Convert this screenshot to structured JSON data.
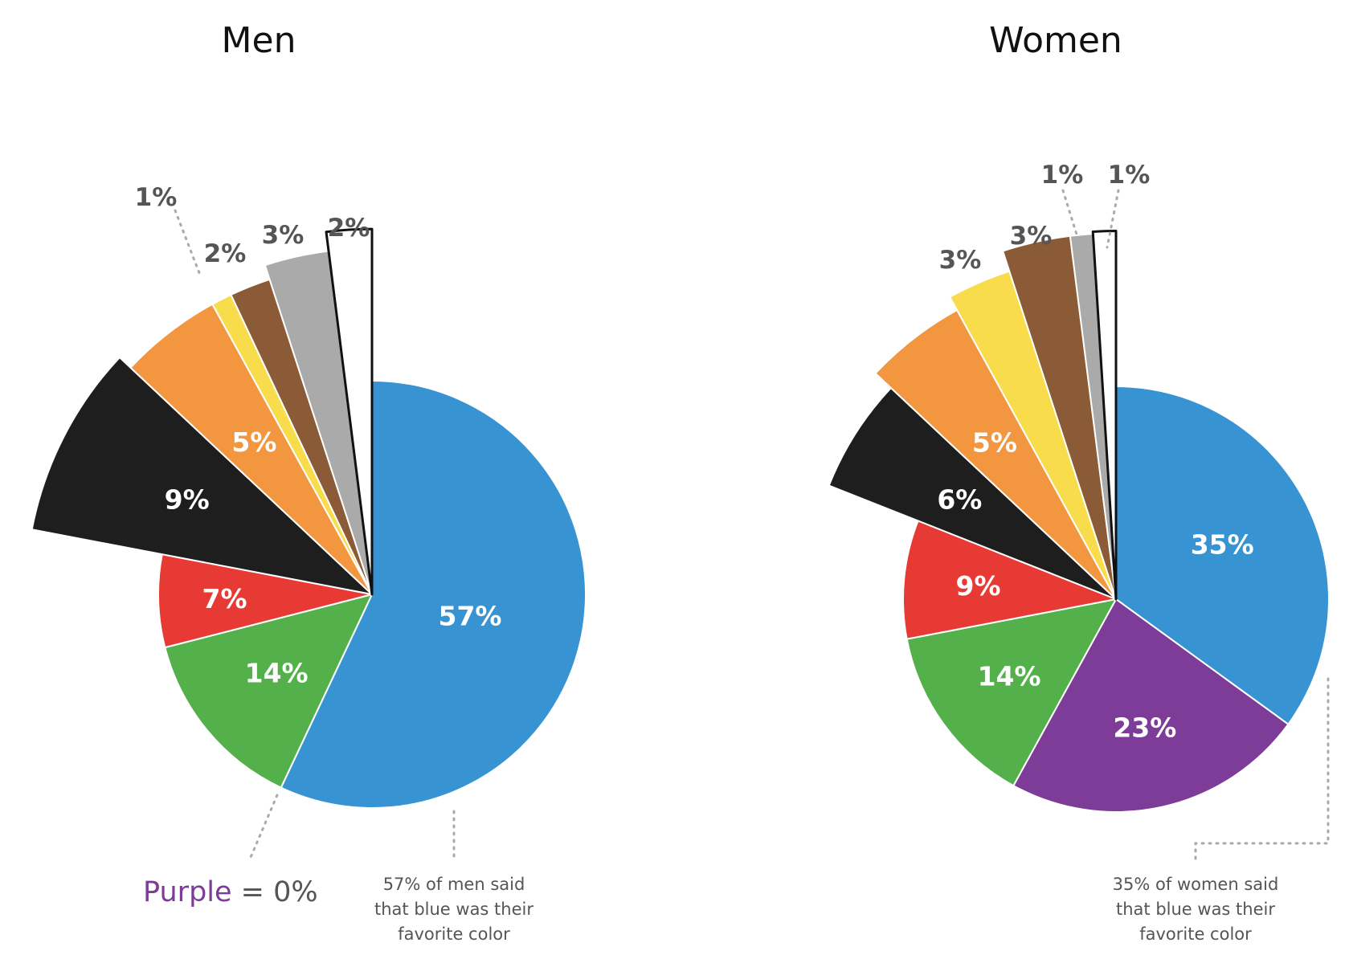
{
  "chart_data": [
    {
      "type": "pie",
      "title": "Men",
      "slices": [
        {
          "label": "Blue",
          "value": 57,
          "display": "57%",
          "color": "#3893d3"
        },
        {
          "label": "Purple",
          "value": 0,
          "display": "0%",
          "color": "#7d3c98"
        },
        {
          "label": "Green",
          "value": 14,
          "display": "14%",
          "color": "#54b04a"
        },
        {
          "label": "Red",
          "value": 7,
          "display": "7%",
          "color": "#e83a34"
        },
        {
          "label": "Black",
          "value": 9,
          "display": "9%",
          "color": "#1e1e1e"
        },
        {
          "label": "Orange",
          "value": 5,
          "display": "5%",
          "color": "#f29640"
        },
        {
          "label": "Yellow",
          "value": 1,
          "display": "1%",
          "color": "#f8dc4c"
        },
        {
          "label": "Brown",
          "value": 2,
          "display": "2%",
          "color": "#8b5a37"
        },
        {
          "label": "Gray",
          "value": 3,
          "display": "3%",
          "color": "#aaaaaa"
        },
        {
          "label": "White",
          "value": 2,
          "display": "2%",
          "color": "#ffffff"
        }
      ],
      "note": [
        "57% of men said",
        "that blue was their",
        "favorite color"
      ],
      "purple_note": {
        "word": "Purple",
        "rest": " = 0%"
      }
    },
    {
      "type": "pie",
      "title": "Women",
      "slices": [
        {
          "label": "Blue",
          "value": 35,
          "display": "35%",
          "color": "#3893d3"
        },
        {
          "label": "Purple",
          "value": 23,
          "display": "23%",
          "color": "#7d3c98"
        },
        {
          "label": "Green",
          "value": 14,
          "display": "14%",
          "color": "#54b04a"
        },
        {
          "label": "Red",
          "value": 9,
          "display": "9%",
          "color": "#e83a34"
        },
        {
          "label": "Black",
          "value": 6,
          "display": "6%",
          "color": "#1e1e1e"
        },
        {
          "label": "Orange",
          "value": 5,
          "display": "5%",
          "color": "#f29640"
        },
        {
          "label": "Yellow",
          "value": 3,
          "display": "3%",
          "color": "#f8dc4c"
        },
        {
          "label": "Brown",
          "value": 3,
          "display": "3%",
          "color": "#8b5a37"
        },
        {
          "label": "Gray",
          "value": 1,
          "display": "1%",
          "color": "#aaaaaa"
        },
        {
          "label": "White",
          "value": 1,
          "display": "1%",
          "color": "#ffffff"
        }
      ],
      "note": [
        "35% of women said",
        "that blue was their",
        "favorite color"
      ]
    }
  ]
}
